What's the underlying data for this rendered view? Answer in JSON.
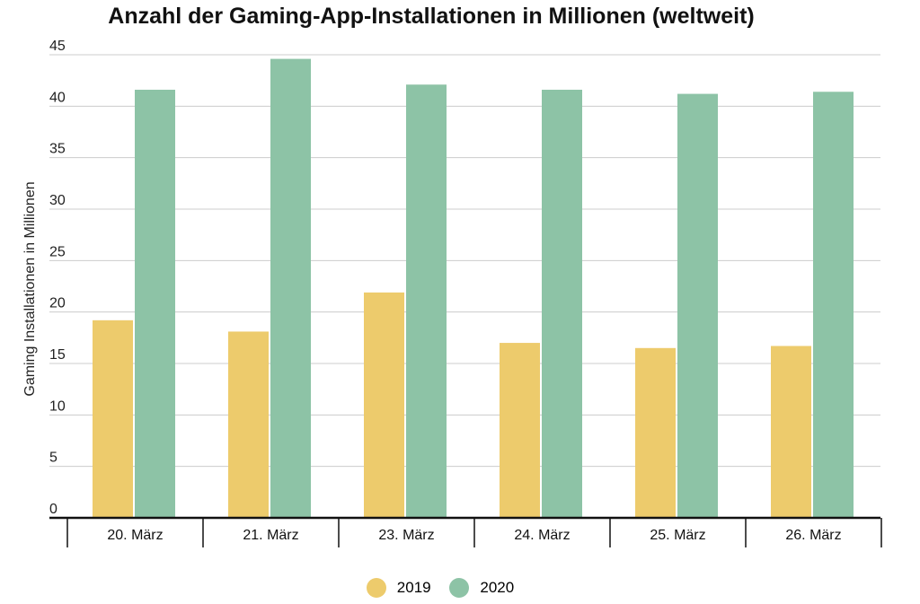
{
  "chart_data": {
    "type": "bar",
    "title": "Anzahl der Gaming-App-Installationen in Millionen (weltweit)",
    "xlabel": "",
    "ylabel": "Gaming Installationen in Millionen",
    "ylim": [
      0,
      45
    ],
    "yticks": [
      0,
      5,
      10,
      15,
      20,
      25,
      30,
      35,
      40,
      45
    ],
    "grid": true,
    "legend_position": "bottom",
    "categories": [
      "20. März",
      "21. März",
      "23. März",
      "24. März",
      "25. März",
      "26. März"
    ],
    "series": [
      {
        "name": "2019",
        "color": "#EDCB6C",
        "values": [
          19.2,
          18.1,
          21.9,
          17.0,
          16.5,
          16.7
        ]
      },
      {
        "name": "2020",
        "color": "#8DC3A6",
        "values": [
          41.6,
          44.6,
          42.1,
          41.6,
          41.2,
          41.4
        ]
      }
    ]
  }
}
